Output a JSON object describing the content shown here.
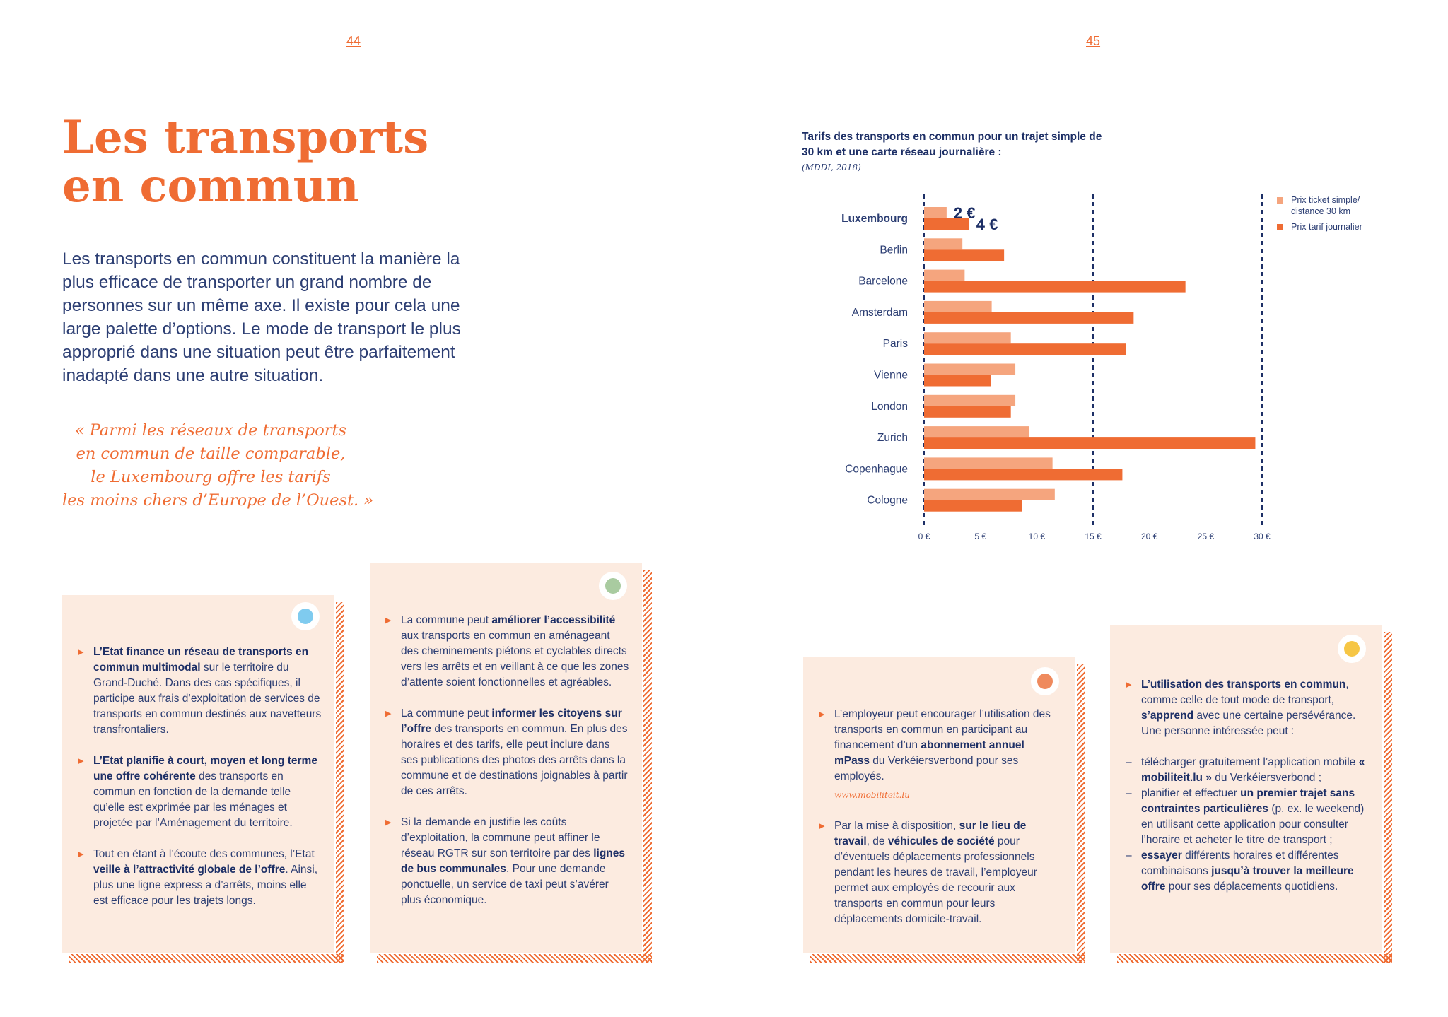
{
  "page_numbers": {
    "left": "44",
    "right": "45"
  },
  "title": {
    "line1": "Les transports",
    "line2": "en commun"
  },
  "intro": "Les transports en commun constituent la manière la plus efficace de transporter un grand nombre de personnes sur un même axe. Il existe pour cela une large palette d’options. Le mode de transport le plus approprié dans une situation peut être parfaitement inadapté dans une autre situation.",
  "quote": {
    "line1": "« Parmi les réseaux de transports",
    "line2": "en commun de taille comparable,",
    "line3": "le Luxembourg offre les tarifs",
    "line4": "les moins chers d’Europe de l’Ouest. »"
  },
  "colors": {
    "accent": "#ef6c33",
    "light_bar": "#f5a57e",
    "navy": "#1d2f66",
    "card_bg": "#fcebe0",
    "dot_blue": "#7fcbef",
    "dot_green": "#a9cba0",
    "dot_orange": "#ef8a5d",
    "dot_yellow": "#f6c645"
  },
  "card1": {
    "items": [
      {
        "b1": "L’Etat finance un réseau de transports en commun multimodal",
        "t1": " sur le territoire du Grand-Duché. Dans des cas spécifiques, il participe aux frais d’exploitation de services de transports en commun destinés aux navetteurs transfrontaliers."
      },
      {
        "b1": "L’Etat planifie à court, moyen et long terme une offre cohérente",
        "t1": " des transports en commun en fonction de la demande telle qu’elle est exprimée par les ménages et projetée par l’Aménagement du territoire."
      },
      {
        "t0": "Tout en étant à l’écoute des communes, l’Etat ",
        "b1": "veille à l’attractivité globale de l’offre",
        "t1": ". Ainsi, plus une ligne express a d’arrêts, moins elle est efficace pour les trajets longs."
      }
    ]
  },
  "card2": {
    "items": [
      {
        "t0": "La commune peut ",
        "b1": "améliorer l’accessibilité",
        "t1": " aux transports en commun en aménageant des cheminements piétons et cyclables directs vers les arrêts et en veillant à ce que les zones d’attente soient fonctionnelles et agréables."
      },
      {
        "t0": "La commune peut ",
        "b1": "informer les citoyens sur l’offre",
        "t1": " des transports en commun. En plus des horaires et des tarifs, elle peut inclure dans ses publications des photos des arrêts dans la commune et de destinations joignables à partir de ces arrêts."
      },
      {
        "t0": "Si la demande en justifie les coûts d’exploitation, la commune peut affiner le réseau RGTR sur son territoire par des ",
        "b1": "lignes de bus communales",
        "t1": ". Pour une demande ponctuelle, un service de taxi peut s’avérer plus économique."
      }
    ]
  },
  "card3": {
    "items": [
      {
        "t0": "L’employeur peut encourager l’utilisation des transports en commun en participant au financement d’un ",
        "b1": "abonnement annuel mPass",
        "t1": " du Verkéiersverbond pour ses employés.",
        "link": "www.mobiliteit.lu"
      },
      {
        "t0": "Par la mise à disposition, ",
        "b1": "sur le lieu de travail",
        "t1": ", de ",
        "b2": "véhicules de société",
        "t2": " pour d’éventuels déplacements professionnels pendant les heures de travail, l’employeur permet aux employés de recourir aux transports en commun pour leurs déplacements domicile-travail."
      }
    ]
  },
  "card4": {
    "intro": {
      "b1": "L’utilisation des transports en commun",
      "t1": ", comme celle de tout mode de transport, ",
      "b2": "s’apprend",
      "t2": " avec une certaine persévérance. Une personne intéressée peut :"
    },
    "dashes": [
      {
        "t0": "télécharger gratuitement l’application mobile ",
        "b1": "« mobiliteit.lu »",
        "t1": " du Verkéiersverbond ;"
      },
      {
        "t0": "planifier et effectuer ",
        "b1": "un premier trajet sans contraintes particulières",
        "t1": " (p. ex. le weekend) en utilisant cette application pour consulter l’horaire et acheter le titre de transport ;"
      },
      {
        "b1": "essayer",
        "t1": " différents horaires et différentes combinaisons ",
        "b2": "jusqu’à trouver la meilleure offre",
        "t2": " pour ses déplacements quotidiens."
      }
    ]
  },
  "chart_data": {
    "type": "bar",
    "orientation": "horizontal",
    "title": "Tarifs des transports en commun pour un trajet simple de 30 km et une carte réseau journalière :",
    "source": "(MDDI, 2018)",
    "categories": [
      "Luxembourg",
      "Berlin",
      "Barcelone",
      "Amsterdam",
      "Paris",
      "Vienne",
      "London",
      "Zurich",
      "Copenhague",
      "Cologne"
    ],
    "series": [
      {
        "name": "Prix ticket simple/ distance 30 km",
        "color": "#f5a57e",
        "values": [
          2,
          3.4,
          3.6,
          6,
          7.7,
          8.1,
          8.1,
          9.3,
          11.4,
          11.6
        ]
      },
      {
        "name": "Prix tarif journalier",
        "color": "#ef6c33",
        "values": [
          4,
          7.1,
          23.2,
          18.6,
          17.9,
          5.9,
          7.7,
          29.4,
          17.6,
          8.7
        ]
      }
    ],
    "data_labels": [
      {
        "category": "Luxembourg",
        "series": 0,
        "text": "2 €"
      },
      {
        "category": "Luxembourg",
        "series": 1,
        "text": "4 €"
      }
    ],
    "xlim": [
      0,
      30
    ],
    "xticks": [
      "0 €",
      "5 €",
      "10 €",
      "15 €",
      "20 €",
      "25 €",
      "30 €"
    ],
    "reference_lines": [
      0,
      15,
      30
    ],
    "legend": "top-right"
  }
}
